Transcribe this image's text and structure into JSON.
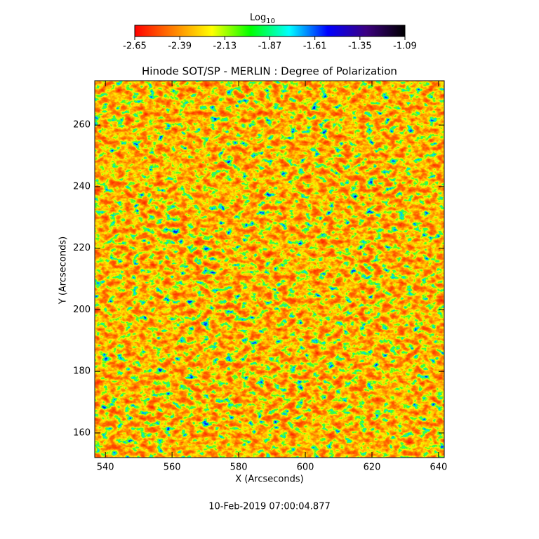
{
  "chart_data": {
    "type": "heatmap",
    "title": "Hinode SOT/SP - MERLIN : Degree of Polarization",
    "xlabel": "X (Arcseconds)",
    "ylabel": "Y (Arcseconds)",
    "xlim": [
      536.8,
      641.7
    ],
    "xticks": [
      540,
      560,
      580,
      600,
      620,
      640
    ],
    "ylim": [
      152.0,
      274.4
    ],
    "yticks": [
      160,
      180,
      200,
      220,
      240,
      260
    ],
    "colorbar": {
      "label": "Log",
      "label_subscript": "10",
      "lim": [
        -2.65,
        -1.09
      ],
      "ticks": [
        -2.65,
        -2.39,
        -2.13,
        -1.87,
        -1.61,
        -1.35,
        -1.09
      ],
      "colormap": [
        "#ff0000",
        "#ff8000",
        "#ffff00",
        "#00ff00",
        "#00ffff",
        "#0000ff",
        "#3c0080",
        "#000000"
      ]
    },
    "footer": "10-Feb-2019 07:00:04.877"
  }
}
